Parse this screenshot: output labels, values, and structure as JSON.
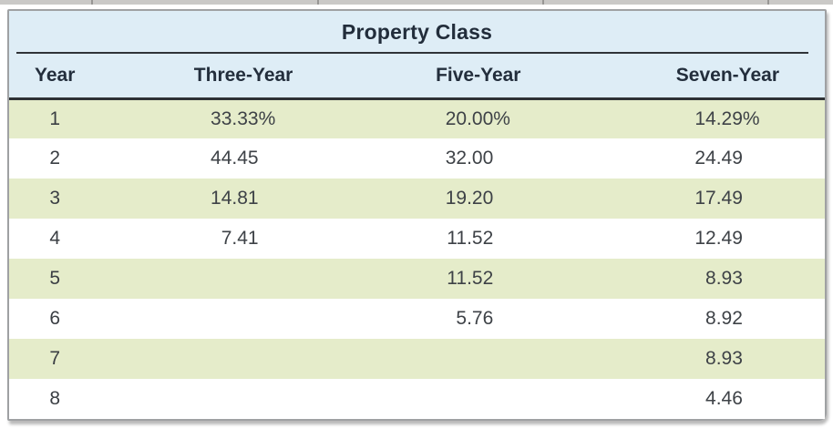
{
  "colors": {
    "header_band_bg": "#deedf6",
    "green_row_bg": "#e5ecca",
    "card_border": "#9fa1a3",
    "dark_rule": "#2e3235",
    "header_text": "#232e3c",
    "data_text": "#3e4247",
    "top_strip": "#cac9c7"
  },
  "table": {
    "title": "Property Class",
    "columns": [
      "Year",
      "Three-Year",
      "Five-Year",
      "Seven-Year"
    ],
    "rows": [
      {
        "year": "1",
        "cells": [
          {
            "num": "33.33",
            "suffix": "%"
          },
          {
            "num": "20.00",
            "suffix": "%"
          },
          {
            "num": "14.29",
            "suffix": "%"
          }
        ]
      },
      {
        "year": "2",
        "cells": [
          {
            "num": "44.45",
            "suffix": ""
          },
          {
            "num": "32.00",
            "suffix": ""
          },
          {
            "num": "24.49",
            "suffix": ""
          }
        ]
      },
      {
        "year": "3",
        "cells": [
          {
            "num": "14.81",
            "suffix": ""
          },
          {
            "num": "19.20",
            "suffix": ""
          },
          {
            "num": "17.49",
            "suffix": ""
          }
        ]
      },
      {
        "year": "4",
        "cells": [
          {
            "num": "7.41",
            "suffix": ""
          },
          {
            "num": "11.52",
            "suffix": ""
          },
          {
            "num": "12.49",
            "suffix": ""
          }
        ]
      },
      {
        "year": "5",
        "cells": [
          {
            "num": "",
            "suffix": ""
          },
          {
            "num": "11.52",
            "suffix": ""
          },
          {
            "num": "8.93",
            "suffix": ""
          }
        ]
      },
      {
        "year": "6",
        "cells": [
          {
            "num": "",
            "suffix": ""
          },
          {
            "num": "5.76",
            "suffix": ""
          },
          {
            "num": "8.92",
            "suffix": ""
          }
        ]
      },
      {
        "year": "7",
        "cells": [
          {
            "num": "",
            "suffix": ""
          },
          {
            "num": "",
            "suffix": ""
          },
          {
            "num": "8.93",
            "suffix": ""
          }
        ]
      },
      {
        "year": "8",
        "cells": [
          {
            "num": "",
            "suffix": ""
          },
          {
            "num": "",
            "suffix": ""
          },
          {
            "num": "4.46",
            "suffix": ""
          }
        ]
      }
    ]
  }
}
